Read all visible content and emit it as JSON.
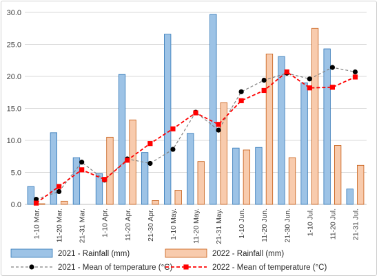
{
  "chart_data": {
    "type": "bar",
    "categories": [
      "1-10 Mar.",
      "11-20 Mar.",
      "21-31 Mar.",
      "1-10 Apr.",
      "11-20 Apr.",
      "21-30 Apr.",
      "1-10 May.",
      "11-20 May.",
      "21-31 May.",
      "1-10 Jun.",
      "11-20 Jun.",
      "21-30 Jun.",
      "1-10 Jul.",
      "11-20 Jul.",
      "21-31 Jul."
    ],
    "ylim": [
      0,
      30
    ],
    "yticks": [
      "0.0",
      "5.0",
      "10.0",
      "15.0",
      "20.0",
      "25.0",
      "30.0"
    ],
    "grid": "horizontal",
    "legend_position": "bottom",
    "series": [
      {
        "name": "2021 - Rainfall (mm)",
        "kind": "bar",
        "color": "#9dc3e6",
        "stroke": "#2e75b6",
        "values": [
          2.8,
          11.2,
          7.3,
          4.8,
          20.3,
          8.1,
          26.6,
          11.1,
          29.7,
          8.8,
          8.9,
          23.1,
          19.0,
          24.3,
          2.4
        ]
      },
      {
        "name": "2022 - Rainfall (mm)",
        "kind": "bar",
        "color": "#f8cbad",
        "stroke": "#c55a11",
        "values": [
          0.1,
          0.5,
          0.0,
          10.5,
          13.2,
          0.6,
          2.2,
          6.7,
          15.9,
          8.5,
          23.5,
          7.3,
          27.5,
          9.2,
          6.1
        ]
      },
      {
        "name": "2021 - Mean of temperature (°C)",
        "kind": "line",
        "color": "#000000",
        "line_color": "#808080",
        "marker": "circle",
        "values": [
          0.8,
          2.0,
          6.6,
          3.8,
          7.1,
          6.4,
          8.6,
          14.4,
          11.6,
          17.6,
          19.4,
          20.5,
          19.6,
          21.4,
          20.7
        ]
      },
      {
        "name": "2022 - Mean of temperature (°C)",
        "kind": "line",
        "color": "#ff0000",
        "line_color": "#ff0000",
        "marker": "square",
        "values": [
          0.2,
          2.8,
          5.4,
          3.9,
          6.9,
          9.5,
          11.8,
          14.3,
          12.5,
          16.2,
          17.8,
          20.7,
          18.2,
          18.3,
          19.9
        ]
      }
    ]
  }
}
